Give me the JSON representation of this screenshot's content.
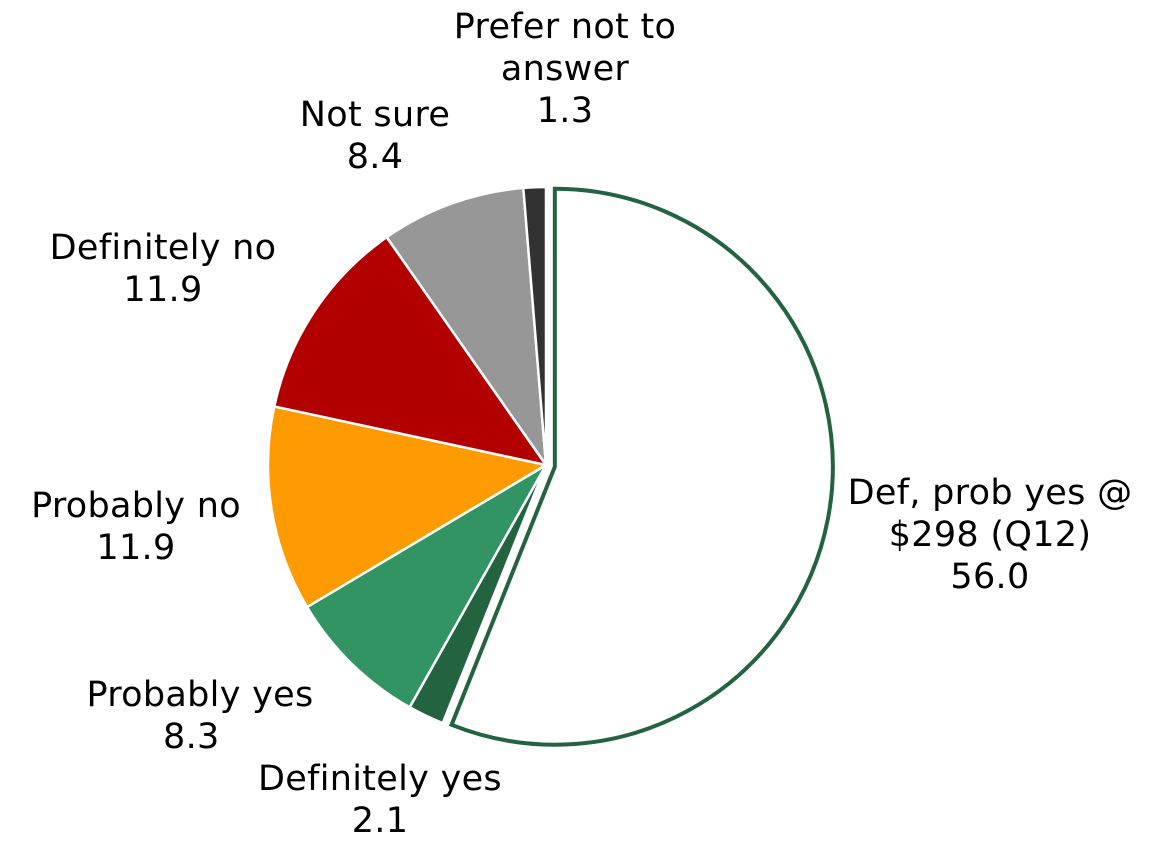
{
  "chart_data": {
    "type": "pie",
    "slices": [
      {
        "label_lines": [
          "Def, prob yes @",
          "$298 (Q12)"
        ],
        "value": 56.0,
        "value_label": "56.0",
        "color": "#ffffff",
        "stroke": "#236340",
        "exploded": true
      },
      {
        "label_lines": [
          "Definitely yes"
        ],
        "value": 2.1,
        "value_label": "2.1",
        "color": "#236340"
      },
      {
        "label_lines": [
          "Probably yes"
        ],
        "value": 8.3,
        "value_label": "8.3",
        "color": "#339463"
      },
      {
        "label_lines": [
          "Probably no"
        ],
        "value": 11.9,
        "value_label": "11.9",
        "color": "#fd9b00"
      },
      {
        "label_lines": [
          "Definitely no"
        ],
        "value": 11.9,
        "value_label": "11.9",
        "color": "#b20000"
      },
      {
        "label_lines": [
          "Not sure"
        ],
        "value": 8.4,
        "value_label": "8.4",
        "color": "#979797"
      },
      {
        "label_lines": [
          "Prefer not to",
          "answer"
        ],
        "value": 1.3,
        "value_label": "1.3",
        "color": "#323232"
      }
    ],
    "start_angle_deg": 0,
    "direction": "clockwise",
    "legend": "none"
  }
}
